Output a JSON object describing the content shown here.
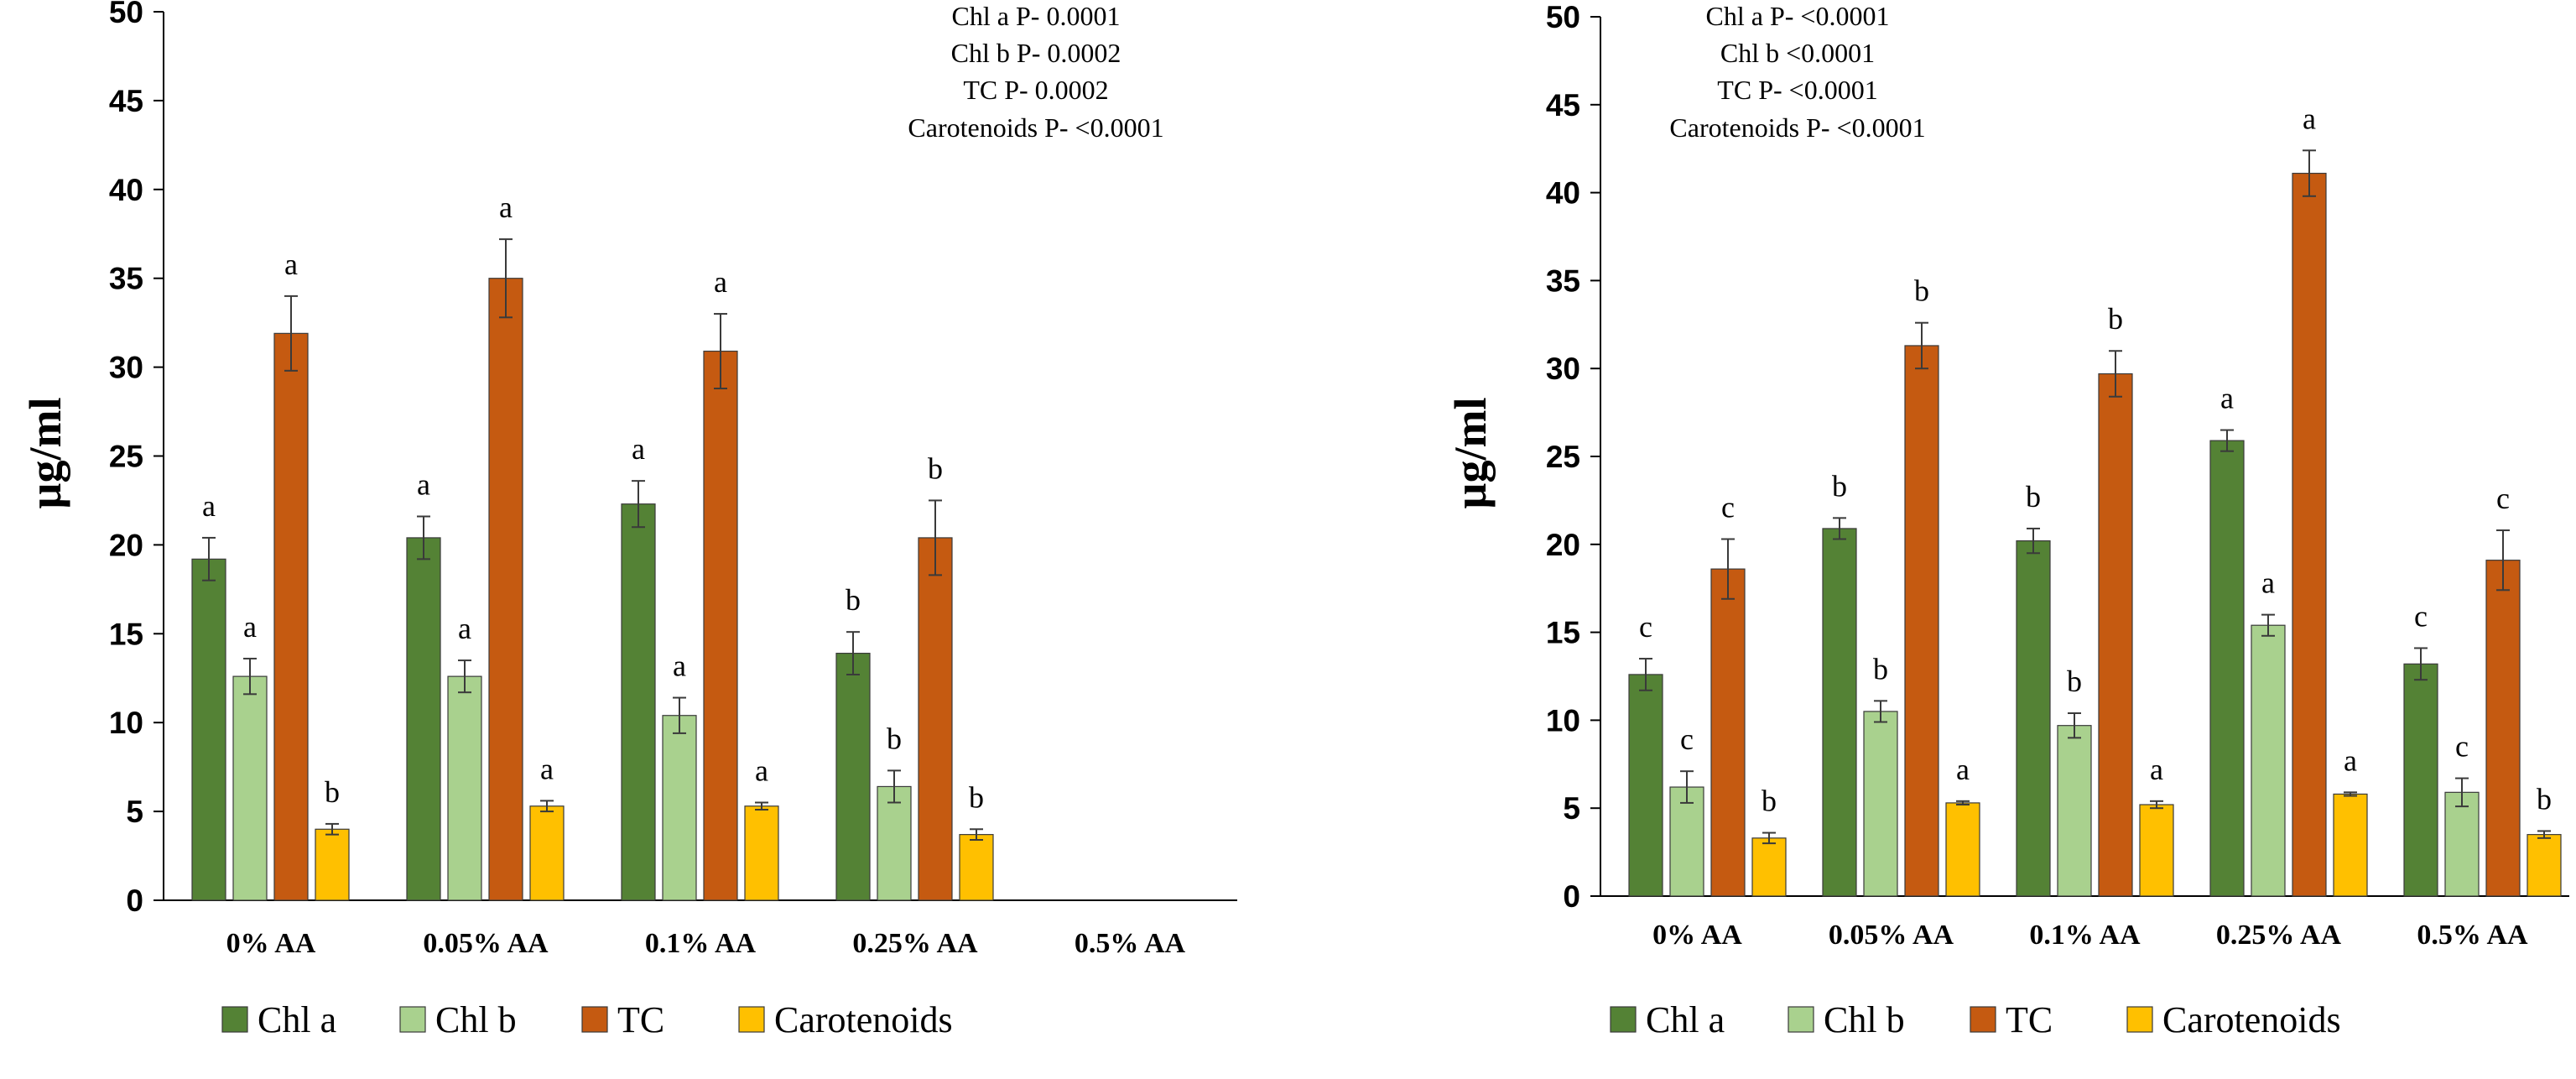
{
  "chart_data": [
    {
      "type": "bar",
      "panel": "left",
      "ylabel": "µg/ml",
      "ylim": [
        0,
        50
      ],
      "yticks": [
        "0",
        "5",
        "10",
        "15",
        "20",
        "25",
        "30",
        "35",
        "40",
        "45",
        "50"
      ],
      "categories": [
        "0% AA",
        "0.05% AA",
        "0.1% AA",
        "0.25% AA",
        "0.5% AA"
      ],
      "series": [
        {
          "name": "Chl a",
          "color": "#548235",
          "values": [
            19.2,
            20.4,
            22.3,
            13.9,
            null
          ],
          "errors": [
            1.2,
            1.2,
            1.3,
            1.2,
            null
          ],
          "letters": [
            "a",
            "a",
            "a",
            "b",
            ""
          ]
        },
        {
          "name": "Chl b",
          "color": "#A9D18E",
          "values": [
            12.6,
            12.6,
            10.4,
            6.4,
            null
          ],
          "errors": [
            1.0,
            0.9,
            1.0,
            0.9,
            null
          ],
          "letters": [
            "a",
            "a",
            "a",
            "b",
            ""
          ]
        },
        {
          "name": "TC",
          "color": "#C55A11",
          "values": [
            31.9,
            35.0,
            30.9,
            20.4,
            null
          ],
          "errors": [
            2.1,
            2.2,
            2.1,
            2.1,
            null
          ],
          "letters": [
            "a",
            "a",
            "a",
            "b",
            ""
          ]
        },
        {
          "name": "Carotenoids",
          "color": "#FFC000",
          "values": [
            4.0,
            5.3,
            5.3,
            3.7,
            null
          ],
          "errors": [
            0.3,
            0.3,
            0.2,
            0.3,
            null
          ],
          "letters": [
            "b",
            "a",
            "a",
            "b",
            ""
          ]
        }
      ],
      "annotations": [
        "Chl a P- 0.0001",
        "Chl b P- 0.0002",
        "TC P- 0.0002",
        "Carotenoids  P- <0.0001"
      ],
      "legend": [
        "Chl a",
        "Chl b",
        "TC",
        "Carotenoids"
      ],
      "legend_position": "bottom",
      "grid": false
    },
    {
      "type": "bar",
      "panel": "right",
      "ylabel": "µg/ml",
      "ylim": [
        0,
        50
      ],
      "yticks": [
        "0",
        "5",
        "10",
        "15",
        "20",
        "25",
        "30",
        "35",
        "40",
        "45",
        "50"
      ],
      "categories": [
        "0% AA",
        "0.05% AA",
        "0.1% AA",
        "0.25% AA",
        "0.5% AA"
      ],
      "series": [
        {
          "name": "Chl a",
          "color": "#548235",
          "values": [
            12.6,
            20.9,
            20.2,
            25.9,
            13.2
          ],
          "errors": [
            0.9,
            0.6,
            0.7,
            0.6,
            0.9
          ],
          "letters": [
            "c",
            "b",
            "b",
            "a",
            "c"
          ]
        },
        {
          "name": "Chl b",
          "color": "#A9D18E",
          "values": [
            6.2,
            10.5,
            9.7,
            15.4,
            5.9
          ],
          "errors": [
            0.9,
            0.6,
            0.7,
            0.6,
            0.8
          ],
          "letters": [
            "c",
            "b",
            "b",
            "a",
            "c"
          ]
        },
        {
          "name": "TC",
          "color": "#C55A11",
          "values": [
            18.6,
            31.3,
            29.7,
            41.1,
            19.1
          ],
          "errors": [
            1.7,
            1.3,
            1.3,
            1.3,
            1.7
          ],
          "letters": [
            "c",
            "b",
            "b",
            "a",
            "c"
          ]
        },
        {
          "name": "Carotenoids",
          "color": "#FFC000",
          "values": [
            3.3,
            5.3,
            5.2,
            5.8,
            3.5
          ],
          "errors": [
            0.3,
            0.1,
            0.2,
            0.1,
            0.2
          ],
          "letters": [
            "b",
            "a",
            "a",
            "a",
            "b"
          ]
        }
      ],
      "annotations": [
        "Chl a P- <0.0001",
        "Chl b <0.0001",
        "TC P- <0.0001",
        "Carotenoids  P- <0.0001"
      ],
      "legend": [
        "Chl a",
        "Chl b",
        "TC",
        "Carotenoids"
      ],
      "legend_position": "bottom",
      "grid": false
    }
  ]
}
